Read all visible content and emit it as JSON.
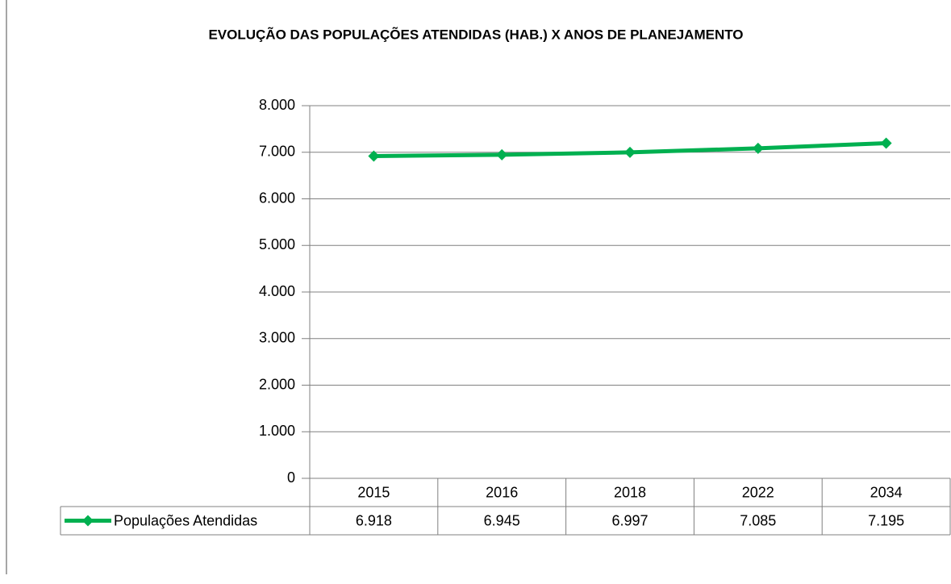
{
  "chart_data": {
    "type": "line",
    "title": "EVOLUÇÃO DAS POPULAÇÕES ATENDIDAS (HAB.) X ANOS DE PLANEJAMENTO",
    "categories": [
      "2015",
      "2016",
      "2018",
      "2022",
      "2034"
    ],
    "series": [
      {
        "name": "Populações Atendidas",
        "color": "#00b050",
        "values": [
          6918,
          6945,
          6997,
          7085,
          7195
        ],
        "value_labels": [
          "6.918",
          "6.945",
          "6.997",
          "7.085",
          "7.195"
        ]
      }
    ],
    "ylim": [
      0,
      8000
    ],
    "yticks": [
      0,
      {
        "value": 1000,
        "label": "1.000"
      },
      {
        "value": 2000,
        "label": "2.000"
      },
      {
        "value": 3000,
        "label": "3.000"
      },
      {
        "value": 4000,
        "label": "4.000"
      },
      {
        "value": 5000,
        "label": "5.000"
      },
      {
        "value": 6000,
        "label": "6.000"
      },
      {
        "value": 7000,
        "label": "7.000"
      },
      {
        "value": 8000,
        "label": "8.000"
      }
    ],
    "grid": true,
    "data_table": true
  }
}
